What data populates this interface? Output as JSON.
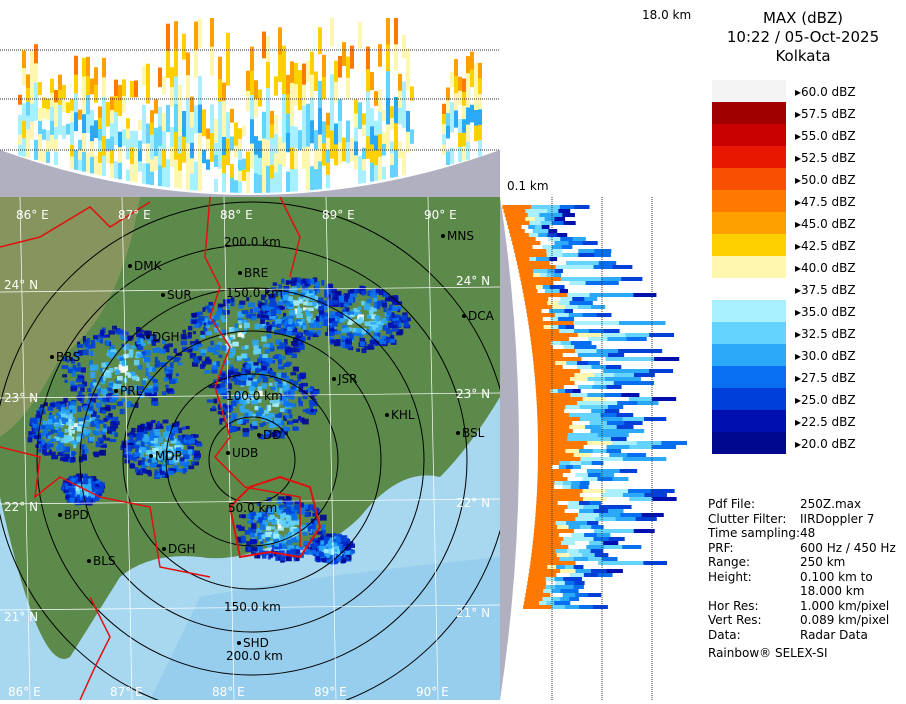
{
  "panel": {
    "title": "MAX (dBZ)",
    "datetime": "10:22 / 05-Oct-2025",
    "station": "Kolkata"
  },
  "top_height_label": "18.0 km",
  "side_height_label": "0.1 km",
  "legend": [
    {
      "label": "60.0 dBZ",
      "color": "#f4f4f4"
    },
    {
      "label": "57.5 dBZ",
      "color": "#a00000"
    },
    {
      "label": "55.0 dBZ",
      "color": "#c80000"
    },
    {
      "label": "52.5 dBZ",
      "color": "#e81800"
    },
    {
      "label": "50.0 dBZ",
      "color": "#f85000"
    },
    {
      "label": "47.5 dBZ",
      "color": "#ff7800"
    },
    {
      "label": "45.0 dBZ",
      "color": "#ffa000"
    },
    {
      "label": "42.5 dBZ",
      "color": "#ffd000"
    },
    {
      "label": "40.0 dBZ",
      "color": "#fff6b0"
    },
    {
      "label": "37.5 dBZ",
      "color": "#ffffff"
    },
    {
      "label": "35.0 dBZ",
      "color": "#a8f0ff"
    },
    {
      "label": "32.5 dBZ",
      "color": "#64d4ff"
    },
    {
      "label": "30.0 dBZ",
      "color": "#2ca8f8"
    },
    {
      "label": "27.5 dBZ",
      "color": "#0870f0"
    },
    {
      "label": "25.0 dBZ",
      "color": "#0040d8"
    },
    {
      "label": "22.5 dBZ",
      "color": "#0010b0"
    },
    {
      "label": "20.0 dBZ",
      "color": "#000890"
    }
  ],
  "info": [
    {
      "key": "Pdf File:",
      "value": "250Z.max"
    },
    {
      "key": "Clutter Filter:",
      "value": "IIRDoppler 7"
    },
    {
      "key": "Time sampling:",
      "value": "48"
    },
    {
      "key": "PRF:",
      "value": "600 Hz / 450 Hz"
    },
    {
      "key": "Range:",
      "value": "250 km"
    },
    {
      "key": "Height:",
      "value": "0.100 km to"
    },
    {
      "key": "",
      "value": "18.000 km"
    },
    {
      "key": "Hor Res:",
      "value": "1.000 km/pixel"
    },
    {
      "key": "Vert Res:",
      "value": "0.089 km/pixel"
    },
    {
      "key": "Data:",
      "value": "Radar Data"
    }
  ],
  "footer": "Rainbow® SELEX-SI",
  "map": {
    "lon_labels": [
      "86° E",
      "87° E",
      "88° E",
      "89° E",
      "90° E"
    ],
    "lon_labels_bottom": [
      "86° E",
      "87° E",
      "88° E",
      "89° E",
      "90° E"
    ],
    "lat_labels_left": [
      "24° N",
      "23° N",
      "22° N",
      "21° N"
    ],
    "lat_labels_right": [
      "24° N",
      "23° N",
      "22° N",
      "21° N"
    ],
    "range_labels": [
      "50.0 km",
      "100.0 km",
      "150.0 km",
      "200.0 km",
      "200.0 km",
      "150.0 km"
    ],
    "cities": [
      "MNS",
      "DMK",
      "BRE",
      "SUR",
      "DCA",
      "DGH",
      "BRS",
      "JSR",
      "PRL",
      "KHL",
      "BSL",
      "DD",
      "MDP",
      "UDB",
      "BPD",
      "DGH",
      "BLS",
      "SHD"
    ]
  },
  "colors": {
    "land_green": "#5c8a4a",
    "land_highland": "#b0a070",
    "sea": "#a8d8f0",
    "sea_deep": "#7cc0e8",
    "border_red": "#e01010",
    "side_gray": "#b0b0c0"
  }
}
